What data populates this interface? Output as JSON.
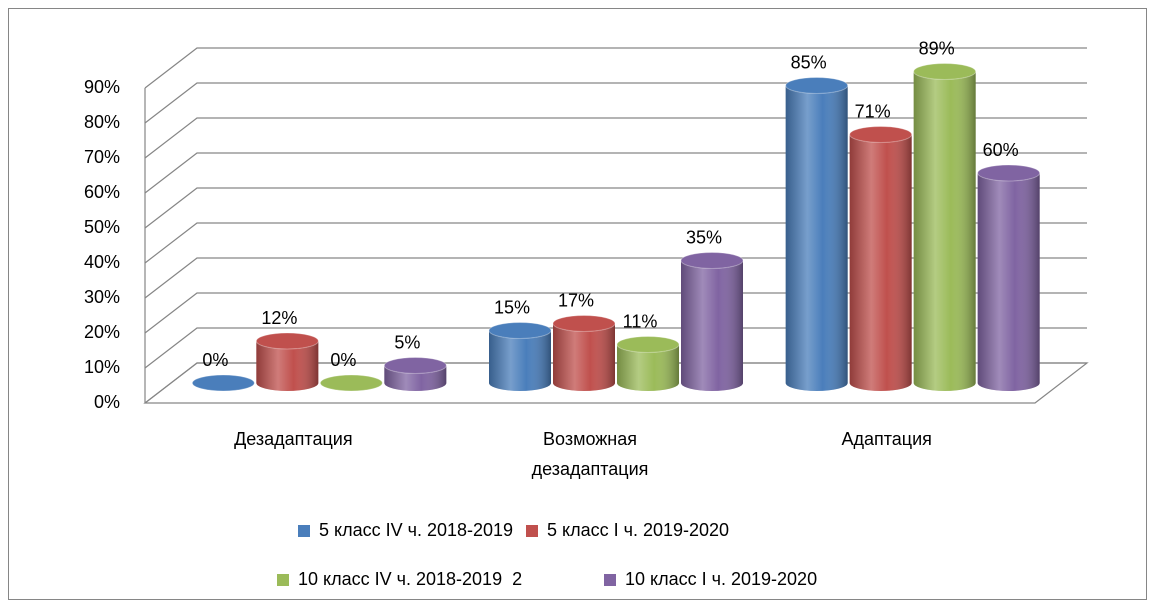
{
  "chart_data": {
    "type": "bar3d",
    "categories": [
      "Дезадаптация",
      "Возможная дезадаптация",
      "Адаптация"
    ],
    "series": [
      {
        "name": "5 класс IV ч. 2018-2019",
        "color": "#4a7ebb",
        "values": [
          0,
          15,
          85
        ],
        "value_labels": [
          "0%",
          "15%",
          "85%"
        ]
      },
      {
        "name": "5 класс I ч. 2019-2020",
        "color": "#c0504d",
        "values": [
          12,
          17,
          71
        ],
        "value_labels": [
          "12%",
          "17%",
          "71%"
        ]
      },
      {
        "name": "10 класс IV ч. 2018-2019  2",
        "color": "#9bbb59",
        "values": [
          0,
          11,
          89
        ],
        "value_labels": [
          "0%",
          "11%",
          "89%"
        ]
      },
      {
        "name": "10 класс I ч. 2019-2020",
        "color": "#8064a2",
        "values": [
          5,
          35,
          60
        ],
        "value_labels": [
          "5%",
          "35%",
          "60%"
        ]
      }
    ],
    "ylim": [
      0,
      90
    ],
    "yticks": [
      {
        "value": 0,
        "label": "0%"
      },
      {
        "value": 10,
        "label": "10%"
      },
      {
        "value": 20,
        "label": "20%"
      },
      {
        "value": 30,
        "label": "30%"
      },
      {
        "value": 40,
        "label": "40%"
      },
      {
        "value": 50,
        "label": "50%"
      },
      {
        "value": 60,
        "label": "60%"
      },
      {
        "value": 70,
        "label": "70%"
      },
      {
        "value": 80,
        "label": "80%"
      },
      {
        "value": 90,
        "label": "90%"
      }
    ],
    "grid": true,
    "legend": "bottom"
  }
}
